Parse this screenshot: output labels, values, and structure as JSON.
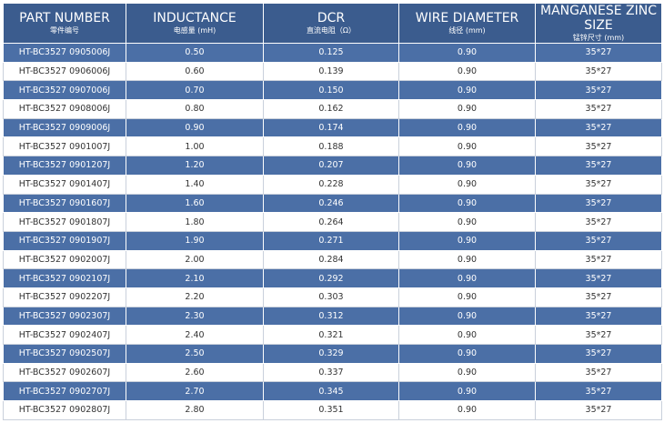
{
  "table": {
    "header": [
      {
        "title": "PART NUMBER",
        "subtitle": "零件编号"
      },
      {
        "title": "INDUCTANCE",
        "subtitle": "电感量 (mH)"
      },
      {
        "title": "DCR",
        "subtitle": "直流电阻（Ω）"
      },
      {
        "title": "WIRE DIAMETER",
        "subtitle": "线径 (mm)"
      },
      {
        "title": "MANGANESE ZINC SIZE",
        "subtitle": "锰锌尺寸 (mm)"
      }
    ],
    "rows": [
      [
        "HT-BC3527 0905006J",
        "0.50",
        "0.125",
        "0.90",
        "35*27"
      ],
      [
        "HT-BC3527 0906006J",
        "0.60",
        "0.139",
        "0.90",
        "35*27"
      ],
      [
        "HT-BC3527 0907006J",
        "0.70",
        "0.150",
        "0.90",
        "35*27"
      ],
      [
        "HT-BC3527 0908006J",
        "0.80",
        "0.162",
        "0.90",
        "35*27"
      ],
      [
        "HT-BC3527 0909006J",
        "0.90",
        "0.174",
        "0.90",
        "35*27"
      ],
      [
        "HT-BC3527 0901007J",
        "1.00",
        "0.188",
        "0.90",
        "35*27"
      ],
      [
        "HT-BC3527 0901207J",
        "1.20",
        "0.207",
        "0.90",
        "35*27"
      ],
      [
        "HT-BC3527 0901407J",
        "1.40",
        "0.228",
        "0.90",
        "35*27"
      ],
      [
        "HT-BC3527 0901607J",
        "1.60",
        "0.246",
        "0.90",
        "35*27"
      ],
      [
        "HT-BC3527 0901807J",
        "1.80",
        "0.264",
        "0.90",
        "35*27"
      ],
      [
        "HT-BC3527 0901907J",
        "1.90",
        "0.271",
        "0.90",
        "35*27"
      ],
      [
        "HT-BC3527 0902007J",
        "2.00",
        "0.284",
        "0.90",
        "35*27"
      ],
      [
        "HT-BC3527 0902107J",
        "2.10",
        "0.292",
        "0.90",
        "35*27"
      ],
      [
        "HT-BC3527 0902207J",
        "2.20",
        "0.303",
        "0.90",
        "35*27"
      ],
      [
        "HT-BC3527 0902307J",
        "2.30",
        "0.312",
        "0.90",
        "35*27"
      ],
      [
        "HT-BC3527 0902407J",
        "2.40",
        "0.321",
        "0.90",
        "35*27"
      ],
      [
        "HT-BC3527 0902507J",
        "2.50",
        "0.329",
        "0.90",
        "35*27"
      ],
      [
        "HT-BC3527 0902607J",
        "2.60",
        "0.337",
        "0.90",
        "35*27"
      ],
      [
        "HT-BC3527 0902707J",
        "2.70",
        "0.345",
        "0.90",
        "35*27"
      ],
      [
        "HT-BC3527 0902807J",
        "2.80",
        "0.351",
        "0.90",
        "35*27"
      ]
    ]
  }
}
